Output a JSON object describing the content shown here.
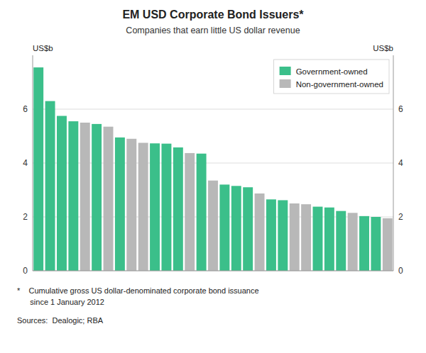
{
  "chart_data": {
    "type": "bar",
    "title": "EM USD Corporate Bond Issuers*",
    "subtitle": "Companies that earn little US dollar revenue",
    "ylabel": "US$b",
    "y2label": "US$b",
    "annotations": [
      "*    Cumulative gross US dollar-denominated corporate bond issuance",
      "      since 1 January 2012",
      "Sources:  Dealogic; RBA"
    ],
    "categories": [
      null,
      null,
      null,
      null,
      null,
      null,
      null,
      null,
      null,
      null,
      null,
      null,
      null,
      null,
      null,
      null,
      null,
      null,
      null,
      null,
      null,
      null,
      null,
      null,
      null,
      null,
      null,
      null,
      null,
      null,
      null
    ],
    "series": [
      {
        "name": "Government-owned",
        "color": "#3BBF8A",
        "values": [
          7.55,
          6.3,
          5.75,
          5.55,
          null,
          5.45,
          null,
          4.95,
          null,
          null,
          4.73,
          4.72,
          4.58,
          null,
          4.35,
          null,
          3.2,
          3.15,
          3.1,
          null,
          2.65,
          2.62,
          null,
          null,
          2.38,
          2.35,
          2.22,
          null,
          2.03,
          2.0,
          null
        ]
      },
      {
        "name": "Non-government-owned",
        "color": "#B8B8B8",
        "values": [
          null,
          null,
          null,
          null,
          5.5,
          null,
          5.35,
          null,
          4.9,
          4.75,
          null,
          null,
          null,
          4.37,
          null,
          3.35,
          null,
          null,
          null,
          2.87,
          null,
          null,
          2.5,
          2.47,
          null,
          null,
          null,
          2.15,
          null,
          null,
          1.95
        ]
      }
    ],
    "stacked": true,
    "ylim": [
      0,
      8
    ],
    "yticks": [
      0,
      2,
      4,
      6
    ],
    "y2lim": [
      0,
      8
    ],
    "y2ticks": [
      0,
      2,
      4,
      6
    ],
    "grid": true,
    "legend": "upper right",
    "tick_labels": "y"
  }
}
